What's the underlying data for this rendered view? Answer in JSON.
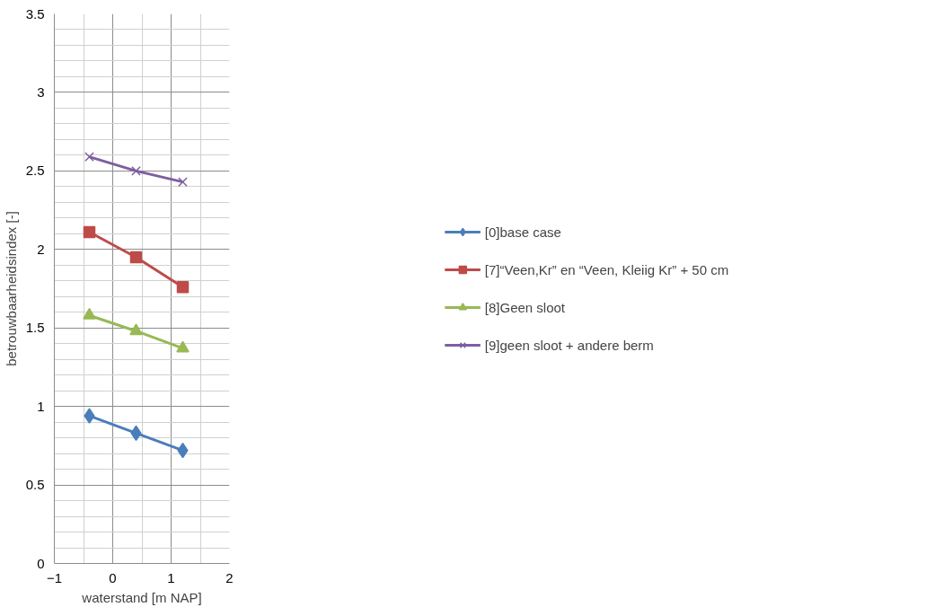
{
  "chart_data": {
    "type": "line",
    "xlabel": "waterstand [m NAP]",
    "ylabel": "betrouwbaarheidsindex [-]",
    "x": [
      -0.4,
      0.4,
      1.2
    ],
    "xlim": [
      -1,
      2
    ],
    "xticks": [
      -1,
      0,
      1,
      2
    ],
    "ylim": [
      0,
      3.5
    ],
    "yticks": [
      0,
      0.5,
      1,
      1.5,
      2,
      2.5,
      3,
      3.5
    ],
    "grid": true,
    "legend": "right",
    "series": [
      {
        "name": "[0]base case",
        "color": "#4a7ebb",
        "marker": "diamond",
        "values": [
          0.94,
          0.83,
          0.72
        ]
      },
      {
        "name": "[7]“Veen,Kr” en “Veen, Kleiig Kr” + 50 cm",
        "color": "#be4b48",
        "marker": "square",
        "values": [
          2.11,
          1.95,
          1.76
        ]
      },
      {
        "name": "[8]Geen sloot",
        "color": "#98b954",
        "marker": "triangle",
        "values": [
          1.58,
          1.48,
          1.37
        ]
      },
      {
        "name": "[9]geen sloot + andere berm",
        "color": "#7d5fa0",
        "marker": "cross",
        "values": [
          2.59,
          2.5,
          2.43
        ]
      }
    ]
  }
}
